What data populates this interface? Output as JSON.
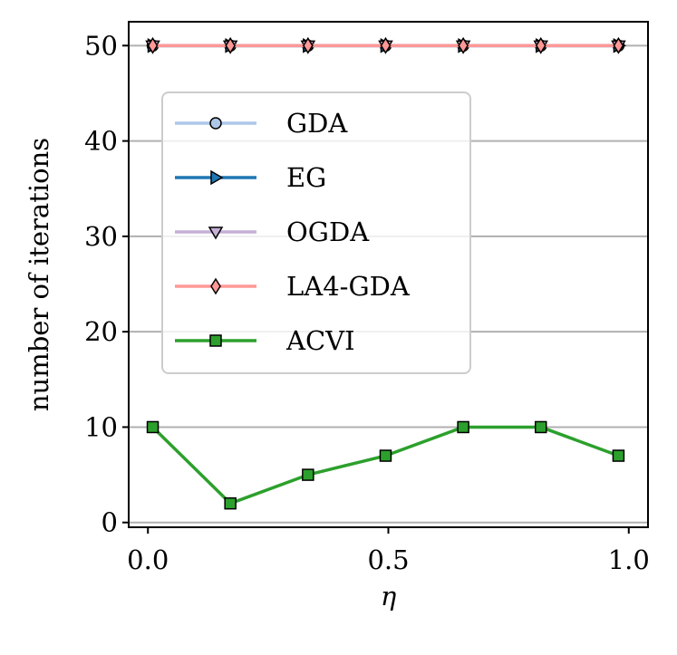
{
  "chart_data": {
    "type": "line",
    "title": "",
    "xlabel": "η",
    "ylabel": "number of iterations",
    "xlim": [
      -0.04,
      1.04
    ],
    "ylim": [
      -0.5,
      52.5
    ],
    "x": [
      0.01,
      0.1714,
      0.3329,
      0.4943,
      0.6557,
      0.8171,
      0.9786
    ],
    "x_ticks": [
      0.0,
      0.5,
      1.0
    ],
    "x_tick_labels": [
      "0.0",
      "0.5",
      "1.0"
    ],
    "y_ticks": [
      0,
      10,
      20,
      30,
      40,
      50
    ],
    "y_tick_labels": [
      "0",
      "10",
      "20",
      "30",
      "40",
      "50"
    ],
    "grid": "y-major",
    "legend_position": "upper-left",
    "series": [
      {
        "name": "GDA",
        "color": "#aec7e8",
        "marker": "circle",
        "values": [
          50,
          50,
          50,
          50,
          50,
          50,
          50
        ]
      },
      {
        "name": "EG",
        "color": "#1f77b4",
        "marker": "triangle-right",
        "values": [
          50,
          50,
          50,
          50,
          50,
          50,
          50
        ]
      },
      {
        "name": "OGDA",
        "color": "#c5b0d5",
        "marker": "triangle-down",
        "values": [
          50,
          50,
          50,
          50,
          50,
          50,
          50
        ]
      },
      {
        "name": "LA4-GDA",
        "color": "#ff9896",
        "marker": "thin-diamond",
        "values": [
          50,
          50,
          50,
          50,
          50,
          50,
          50
        ]
      },
      {
        "name": "ACVI",
        "color": "#2ca02c",
        "marker": "square",
        "values": [
          10,
          2,
          5,
          7,
          10,
          10,
          7
        ]
      }
    ]
  }
}
